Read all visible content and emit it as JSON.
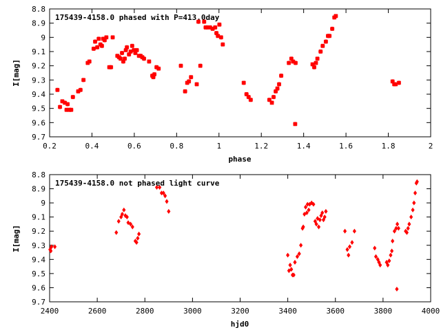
{
  "chart_data": [
    {
      "type": "scatter",
      "title": "175439-4158.0 phased with P=413.0day",
      "xlabel": "phase",
      "ylabel": "I[mag]",
      "xlim": [
        0.2,
        2.0
      ],
      "ylim": [
        8.8,
        9.7
      ],
      "y_inverted": true,
      "x_ticks": [
        "0.2",
        "0.4",
        "0.6",
        "0.8",
        "1",
        "1.2",
        "1.4",
        "1.6",
        "1.8",
        "2"
      ],
      "x_tick_values": [
        0.2,
        0.4,
        0.6,
        0.8,
        1.0,
        1.2,
        1.4,
        1.6,
        1.8,
        2.0
      ],
      "y_ticks": [
        "8.8",
        "8.9",
        "9",
        "9.1",
        "9.2",
        "9.3",
        "9.4",
        "9.5",
        "9.6",
        "9.7"
      ],
      "y_tick_values": [
        8.8,
        8.9,
        9.0,
        9.1,
        9.2,
        9.3,
        9.4,
        9.5,
        9.6,
        9.7
      ],
      "grid": false,
      "marker_color": "#ff0000",
      "points": [
        [
          0.237,
          9.37
        ],
        [
          0.249,
          9.49
        ],
        [
          0.26,
          9.45
        ],
        [
          0.272,
          9.46
        ],
        [
          0.28,
          9.51
        ],
        [
          0.285,
          9.47
        ],
        [
          0.293,
          9.51
        ],
        [
          0.302,
          9.51
        ],
        [
          0.31,
          9.42
        ],
        [
          0.335,
          9.38
        ],
        [
          0.346,
          9.37
        ],
        [
          0.36,
          9.3
        ],
        [
          0.38,
          9.18
        ],
        [
          0.388,
          9.17
        ],
        [
          0.408,
          9.08
        ],
        [
          0.415,
          9.03
        ],
        [
          0.425,
          9.07
        ],
        [
          0.432,
          9.01
        ],
        [
          0.44,
          9.05
        ],
        [
          0.447,
          9.06
        ],
        [
          0.453,
          9.01
        ],
        [
          0.46,
          9.02
        ],
        [
          0.468,
          9.0
        ],
        [
          0.482,
          9.21
        ],
        [
          0.49,
          9.21
        ],
        [
          0.498,
          9.0
        ],
        [
          0.52,
          9.13
        ],
        [
          0.528,
          9.14
        ],
        [
          0.535,
          9.15
        ],
        [
          0.542,
          9.11
        ],
        [
          0.548,
          9.17
        ],
        [
          0.555,
          9.15
        ],
        [
          0.56,
          9.09
        ],
        [
          0.565,
          9.07
        ],
        [
          0.575,
          9.12
        ],
        [
          0.583,
          9.1
        ],
        [
          0.59,
          9.06
        ],
        [
          0.598,
          9.09
        ],
        [
          0.605,
          9.11
        ],
        [
          0.612,
          9.09
        ],
        [
          0.622,
          9.13
        ],
        [
          0.63,
          9.13
        ],
        [
          0.638,
          9.14
        ],
        [
          0.646,
          9.15
        ],
        [
          0.67,
          9.17
        ],
        [
          0.685,
          9.27
        ],
        [
          0.69,
          9.28
        ],
        [
          0.695,
          9.26
        ],
        [
          0.705,
          9.21
        ],
        [
          0.715,
          9.22
        ],
        [
          0.82,
          9.2
        ],
        [
          0.84,
          9.38
        ],
        [
          0.85,
          9.32
        ],
        [
          0.858,
          9.31
        ],
        [
          0.868,
          9.28
        ],
        [
          0.895,
          9.33
        ],
        [
          0.903,
          8.89
        ],
        [
          0.912,
          9.2
        ],
        [
          0.93,
          8.89
        ],
        [
          0.937,
          8.93
        ],
        [
          0.945,
          8.93
        ],
        [
          0.958,
          8.93
        ],
        [
          0.97,
          8.94
        ],
        [
          0.982,
          8.93
        ],
        [
          0.988,
          8.97
        ],
        [
          0.995,
          8.99
        ],
        [
          1.002,
          8.91
        ],
        [
          1.01,
          9.0
        ],
        [
          1.018,
          9.05
        ],
        [
          1.117,
          9.32
        ],
        [
          1.13,
          9.4
        ],
        [
          1.14,
          9.42
        ],
        [
          1.15,
          9.44
        ],
        [
          1.238,
          9.44
        ],
        [
          1.25,
          9.46
        ],
        [
          1.258,
          9.42
        ],
        [
          1.268,
          9.38
        ],
        [
          1.276,
          9.36
        ],
        [
          1.284,
          9.33
        ],
        [
          1.294,
          9.27
        ],
        [
          1.33,
          9.18
        ],
        [
          1.342,
          9.15
        ],
        [
          1.35,
          9.17
        ],
        [
          1.362,
          9.18
        ],
        [
          1.36,
          9.61
        ],
        [
          1.442,
          9.19
        ],
        [
          1.45,
          9.21
        ],
        [
          1.458,
          9.18
        ],
        [
          1.465,
          9.15
        ],
        [
          1.48,
          9.1
        ],
        [
          1.49,
          9.06
        ],
        [
          1.505,
          9.03
        ],
        [
          1.515,
          8.99
        ],
        [
          1.522,
          8.99
        ],
        [
          1.535,
          8.94
        ],
        [
          1.545,
          8.86
        ],
        [
          1.552,
          8.85
        ],
        [
          1.82,
          9.31
        ],
        [
          1.828,
          9.33
        ],
        [
          1.835,
          9.33
        ],
        [
          1.85,
          9.32
        ]
      ]
    },
    {
      "type": "scatter",
      "title": "175439-4158.0 not phased light curve",
      "xlabel": "hjd0",
      "ylabel": "I[mag]",
      "xlim": [
        2400,
        4000
      ],
      "ylim": [
        8.8,
        9.7
      ],
      "y_inverted": true,
      "x_ticks": [
        "2400",
        "2600",
        "2800",
        "3000",
        "3200",
        "3400",
        "3600",
        "3800",
        "4000"
      ],
      "x_tick_values": [
        2400,
        2600,
        2800,
        3000,
        3200,
        3400,
        3600,
        3800,
        4000
      ],
      "y_ticks": [
        "8.8",
        "8.9",
        "9",
        "9.1",
        "9.2",
        "9.3",
        "9.4",
        "9.5",
        "9.6",
        "9.7"
      ],
      "y_tick_values": [
        8.8,
        8.9,
        9.0,
        9.1,
        9.2,
        9.3,
        9.4,
        9.5,
        9.6,
        9.7
      ],
      "grid": false,
      "marker_color": "#ff0000",
      "points": [
        [
          2402,
          9.33
        ],
        [
          2405,
          9.34
        ],
        [
          2408,
          9.31
        ],
        [
          2422,
          9.31
        ],
        [
          2680,
          9.21
        ],
        [
          2690,
          9.13
        ],
        [
          2700,
          9.1
        ],
        [
          2705,
          9.08
        ],
        [
          2712,
          9.05
        ],
        [
          2718,
          9.09
        ],
        [
          2725,
          9.1
        ],
        [
          2730,
          9.14
        ],
        [
          2740,
          9.15
        ],
        [
          2748,
          9.17
        ],
        [
          2760,
          9.27
        ],
        [
          2765,
          9.28
        ],
        [
          2770,
          9.25
        ],
        [
          2775,
          9.22
        ],
        [
          2850,
          8.89
        ],
        [
          2862,
          8.89
        ],
        [
          2870,
          8.93
        ],
        [
          2878,
          8.93
        ],
        [
          2885,
          8.95
        ],
        [
          2892,
          8.99
        ],
        [
          2900,
          9.06
        ],
        [
          3400,
          9.37
        ],
        [
          3405,
          9.48
        ],
        [
          3410,
          9.44
        ],
        [
          3415,
          9.47
        ],
        [
          3420,
          9.51
        ],
        [
          3425,
          9.51
        ],
        [
          3430,
          9.42
        ],
        [
          3440,
          9.38
        ],
        [
          3448,
          9.36
        ],
        [
          3455,
          9.3
        ],
        [
          3462,
          9.18
        ],
        [
          3465,
          9.17
        ],
        [
          3470,
          9.08
        ],
        [
          3475,
          9.03
        ],
        [
          3480,
          9.07
        ],
        [
          3483,
          9.01
        ],
        [
          3488,
          9.05
        ],
        [
          3492,
          9.01
        ],
        [
          3500,
          9.0
        ],
        [
          3508,
          9.01
        ],
        [
          3515,
          9.13
        ],
        [
          3520,
          9.15
        ],
        [
          3525,
          9.11
        ],
        [
          3530,
          9.17
        ],
        [
          3535,
          9.12
        ],
        [
          3540,
          9.09
        ],
        [
          3545,
          9.07
        ],
        [
          3550,
          9.12
        ],
        [
          3555,
          9.1
        ],
        [
          3560,
          9.06
        ],
        [
          3640,
          9.2
        ],
        [
          3650,
          9.33
        ],
        [
          3655,
          9.37
        ],
        [
          3660,
          9.31
        ],
        [
          3670,
          9.28
        ],
        [
          3680,
          9.2
        ],
        [
          3765,
          9.32
        ],
        [
          3770,
          9.38
        ],
        [
          3778,
          9.4
        ],
        [
          3783,
          9.42
        ],
        [
          3788,
          9.44
        ],
        [
          3815,
          9.42
        ],
        [
          3820,
          9.44
        ],
        [
          3826,
          9.41
        ],
        [
          3832,
          9.37
        ],
        [
          3837,
          9.34
        ],
        [
          3840,
          9.27
        ],
        [
          3848,
          9.2
        ],
        [
          3855,
          9.18
        ],
        [
          3860,
          9.15
        ],
        [
          3865,
          9.18
        ],
        [
          3858,
          9.61
        ],
        [
          3895,
          9.2
        ],
        [
          3900,
          9.21
        ],
        [
          3905,
          9.18
        ],
        [
          3910,
          9.15
        ],
        [
          3918,
          9.1
        ],
        [
          3925,
          9.05
        ],
        [
          3930,
          9.0
        ],
        [
          3935,
          8.93
        ],
        [
          3940,
          8.86
        ],
        [
          3943,
          8.85
        ]
      ]
    }
  ]
}
